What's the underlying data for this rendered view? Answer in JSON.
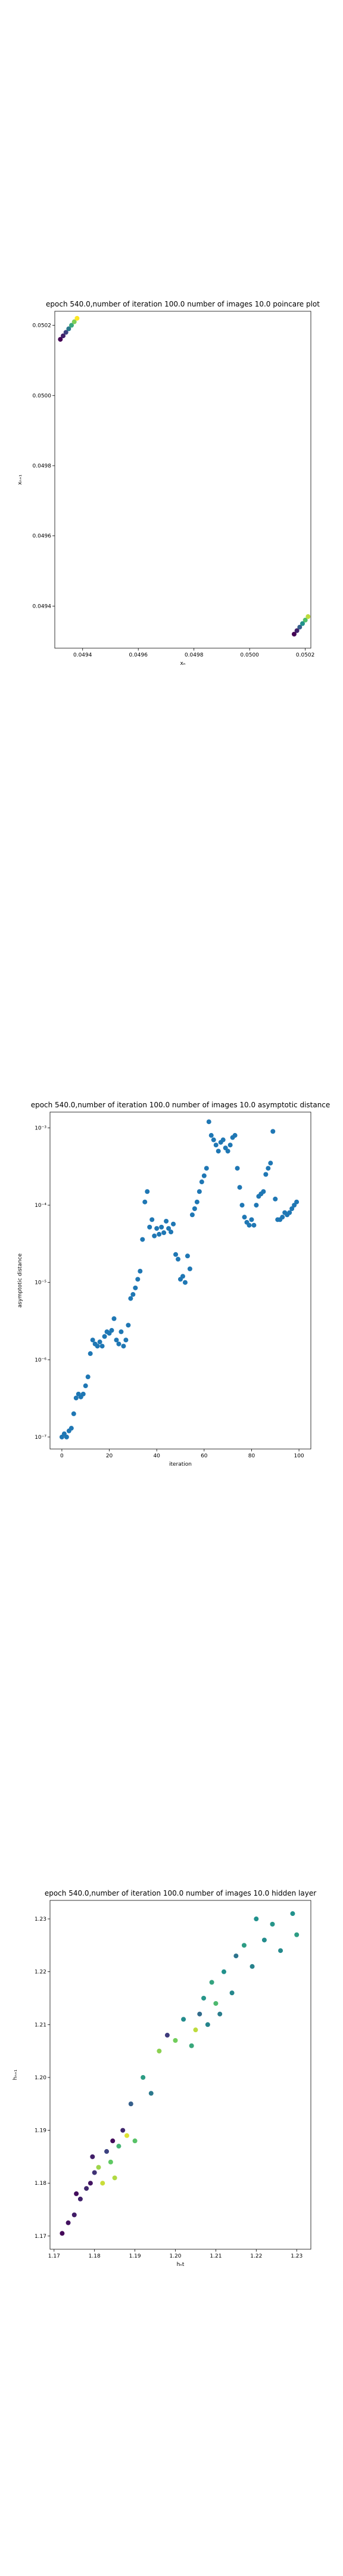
{
  "colors": {
    "frame": "#000000",
    "point_blue": "#1f77b4",
    "viridis_low": "#440154",
    "viridis_mid": "#21918c",
    "viridis_high": "#fde725"
  },
  "chart_data": [
    {
      "type": "scatter",
      "title": "epoch 540.0,number of iteration 100.0 number of images 10.0 poincare plot",
      "xlabel": "xₙ",
      "ylabel": "xₙ₊₁",
      "xlim": [
        0.0493,
        0.05022
      ],
      "ylim": [
        0.04928,
        0.05024
      ],
      "xticks": [
        0.0494,
        0.0496,
        0.0498,
        0.05,
        0.0502
      ],
      "xtick_labels": [
        "0.0494",
        "0.0496",
        "0.0498",
        "0.0500",
        "0.0502"
      ],
      "yticks": [
        0.0494,
        0.0496,
        0.0498,
        0.05,
        0.0502
      ],
      "ytick_labels": [
        "0.0494",
        "0.0496",
        "0.0498",
        "0.0500",
        "0.0502"
      ],
      "colormap": "viridis",
      "points": [
        {
          "x": 0.04932,
          "y": 0.05016,
          "c": 0.0
        },
        {
          "x": 0.04933,
          "y": 0.05017,
          "c": 0.1
        },
        {
          "x": 0.04934,
          "y": 0.05018,
          "c": 0.2
        },
        {
          "x": 0.04935,
          "y": 0.05019,
          "c": 0.4
        },
        {
          "x": 0.04936,
          "y": 0.0502,
          "c": 0.6
        },
        {
          "x": 0.04937,
          "y": 0.05021,
          "c": 0.8
        },
        {
          "x": 0.04938,
          "y": 0.05022,
          "c": 1.0
        },
        {
          "x": 0.05016,
          "y": 0.04932,
          "c": 0.0
        },
        {
          "x": 0.05017,
          "y": 0.04933,
          "c": 0.1
        },
        {
          "x": 0.05018,
          "y": 0.04934,
          "c": 0.3
        },
        {
          "x": 0.05019,
          "y": 0.04935,
          "c": 0.5
        },
        {
          "x": 0.0502,
          "y": 0.04936,
          "c": 0.7
        },
        {
          "x": 0.05021,
          "y": 0.04937,
          "c": 0.9
        }
      ]
    },
    {
      "type": "scatter",
      "title": "epoch 540.0,number of iteration 100.0  number of images 10.0 asymptotic distance",
      "xlabel": "iteration",
      "ylabel": "asymptotic distance",
      "yscale": "log",
      "xlim": [
        -5,
        105
      ],
      "ylim": [
        7e-08,
        0.0016
      ],
      "xticks": [
        0,
        20,
        40,
        60,
        80,
        100
      ],
      "xtick_labels": [
        "0",
        "20",
        "40",
        "60",
        "80",
        "100"
      ],
      "yticks": [
        1e-07,
        1e-06,
        1e-05,
        0.0001,
        0.001
      ],
      "ytick_labels": [
        "10⁻⁷",
        "10⁻⁶",
        "10⁻⁵",
        "10⁻⁴",
        "10⁻³"
      ],
      "x": [
        0,
        1,
        2,
        3,
        4,
        5,
        6,
        7,
        8,
        9,
        10,
        11,
        12,
        13,
        14,
        15,
        16,
        17,
        18,
        19,
        20,
        21,
        22,
        23,
        24,
        25,
        26,
        27,
        28,
        29,
        30,
        31,
        32,
        33,
        34,
        35,
        36,
        37,
        38,
        39,
        40,
        41,
        42,
        43,
        44,
        45,
        46,
        47,
        48,
        49,
        50,
        51,
        52,
        53,
        54,
        55,
        56,
        57,
        58,
        59,
        60,
        61,
        62,
        63,
        64,
        65,
        66,
        67,
        68,
        69,
        70,
        71,
        72,
        73,
        74,
        75,
        76,
        77,
        78,
        79,
        80,
        81,
        82,
        83,
        84,
        85,
        86,
        87,
        88,
        89,
        90,
        91,
        92,
        93,
        94,
        95,
        96,
        97,
        98,
        99
      ],
      "y": [
        1e-07,
        1.1e-07,
        1e-07,
        1.2e-07,
        1.3e-07,
        2e-07,
        3.2e-07,
        3.6e-07,
        3.3e-07,
        3.6e-07,
        4.6e-07,
        6e-07,
        1.2e-06,
        1.8e-06,
        1.6e-06,
        1.5e-06,
        1.7e-06,
        1.5e-06,
        2e-06,
        2.3e-06,
        2.2e-06,
        2.4e-06,
        3.4e-06,
        1.8e-06,
        1.6e-06,
        2.3e-06,
        1.5e-06,
        1.8e-06,
        2.8e-06,
        6.2e-06,
        7e-06,
        8.5e-06,
        1.1e-05,
        1.4e-05,
        3.6e-05,
        0.00011,
        0.00015,
        5.2e-05,
        6.5e-05,
        4e-05,
        5e-05,
        4.2e-05,
        5.2e-05,
        4.4e-05,
        6.2e-05,
        5e-05,
        4.5e-05,
        5.7e-05,
        2.3e-05,
        2e-05,
        1.1e-05,
        1.2e-05,
        1e-05,
        2.2e-05,
        1.5e-05,
        7.5e-05,
        9e-05,
        0.00011,
        0.00015,
        0.0002,
        0.00024,
        0.0003,
        0.0012,
        0.0008,
        0.0007,
        0.0006,
        0.0005,
        0.00065,
        0.0007,
        0.00055,
        0.0005,
        0.0006,
        0.00075,
        0.0008,
        0.0003,
        0.00017,
        0.0001,
        7e-05,
        6e-05,
        5.5e-05,
        6.5e-05,
        5.5e-05,
        0.0001,
        0.00013,
        0.00014,
        0.00015,
        0.00025,
        0.0003,
        0.00035,
        0.0009,
        0.00012,
        6.5e-05,
        6.5e-05,
        7e-05,
        8e-05,
        7.5e-05,
        8e-05,
        9e-05,
        0.0001,
        0.00011
      ]
    },
    {
      "type": "scatter",
      "title": "epoch 540.0,number of iteration 100.0  number of images 10.0 hidden layer",
      "xlabel": "hₙt",
      "ylabel": "hₙ₊₁",
      "xlim": [
        1.169,
        1.2335
      ],
      "ylim": [
        1.1675,
        1.2335
      ],
      "xticks": [
        1.17,
        1.18,
        1.19,
        1.2,
        1.21,
        1.22,
        1.23
      ],
      "xtick_labels": [
        "1.17",
        "1.18",
        "1.19",
        "1.20",
        "1.21",
        "1.22",
        "1.23"
      ],
      "yticks": [
        1.17,
        1.18,
        1.19,
        1.2,
        1.21,
        1.22,
        1.23
      ],
      "ytick_labels": [
        "1.17",
        "1.18",
        "1.19",
        "1.20",
        "1.21",
        "1.22",
        "1.23"
      ],
      "colormap": "viridis",
      "points": [
        {
          "x": 1.172,
          "y": 1.1705,
          "c": 0.02
        },
        {
          "x": 1.1735,
          "y": 1.1725,
          "c": 0.05
        },
        {
          "x": 1.175,
          "y": 1.174,
          "c": 0.08
        },
        {
          "x": 1.1755,
          "y": 1.178,
          "c": 0.04
        },
        {
          "x": 1.1765,
          "y": 1.177,
          "c": 0.1
        },
        {
          "x": 1.178,
          "y": 1.179,
          "c": 0.12
        },
        {
          "x": 1.179,
          "y": 1.18,
          "c": 0.06
        },
        {
          "x": 1.18,
          "y": 1.182,
          "c": 0.15
        },
        {
          "x": 1.1795,
          "y": 1.185,
          "c": 0.09
        },
        {
          "x": 1.181,
          "y": 1.183,
          "c": 0.85
        },
        {
          "x": 1.182,
          "y": 1.18,
          "c": 0.92
        },
        {
          "x": 1.183,
          "y": 1.186,
          "c": 0.2
        },
        {
          "x": 1.184,
          "y": 1.184,
          "c": 0.75
        },
        {
          "x": 1.1845,
          "y": 1.188,
          "c": 0.03
        },
        {
          "x": 1.185,
          "y": 1.181,
          "c": 0.88
        },
        {
          "x": 1.186,
          "y": 1.187,
          "c": 0.65
        },
        {
          "x": 1.187,
          "y": 1.19,
          "c": 0.12
        },
        {
          "x": 1.188,
          "y": 1.189,
          "c": 0.95
        },
        {
          "x": 1.189,
          "y": 1.195,
          "c": 0.3
        },
        {
          "x": 1.19,
          "y": 1.188,
          "c": 0.72
        },
        {
          "x": 1.192,
          "y": 1.2,
          "c": 0.55
        },
        {
          "x": 1.194,
          "y": 1.197,
          "c": 0.4
        },
        {
          "x": 1.196,
          "y": 1.205,
          "c": 0.82
        },
        {
          "x": 1.198,
          "y": 1.208,
          "c": 0.18
        },
        {
          "x": 1.2,
          "y": 1.207,
          "c": 0.78
        },
        {
          "x": 1.202,
          "y": 1.211,
          "c": 0.48
        },
        {
          "x": 1.204,
          "y": 1.206,
          "c": 0.6
        },
        {
          "x": 1.205,
          "y": 1.209,
          "c": 0.9
        },
        {
          "x": 1.206,
          "y": 1.212,
          "c": 0.35
        },
        {
          "x": 1.207,
          "y": 1.215,
          "c": 0.52
        },
        {
          "x": 1.208,
          "y": 1.21,
          "c": 0.45
        },
        {
          "x": 1.209,
          "y": 1.218,
          "c": 0.58
        },
        {
          "x": 1.21,
          "y": 1.214,
          "c": 0.68
        },
        {
          "x": 1.211,
          "y": 1.212,
          "c": 0.42
        },
        {
          "x": 1.212,
          "y": 1.22,
          "c": 0.5
        },
        {
          "x": 1.214,
          "y": 1.216,
          "c": 0.46
        },
        {
          "x": 1.215,
          "y": 1.223,
          "c": 0.38
        },
        {
          "x": 1.217,
          "y": 1.225,
          "c": 0.55
        },
        {
          "x": 1.219,
          "y": 1.221,
          "c": 0.44
        },
        {
          "x": 1.22,
          "y": 1.23,
          "c": 0.5
        },
        {
          "x": 1.222,
          "y": 1.226,
          "c": 0.48
        },
        {
          "x": 1.224,
          "y": 1.229,
          "c": 0.52
        },
        {
          "x": 1.226,
          "y": 1.224,
          "c": 0.47
        },
        {
          "x": 1.229,
          "y": 1.231,
          "c": 0.5
        },
        {
          "x": 1.23,
          "y": 1.227,
          "c": 0.55
        }
      ]
    }
  ]
}
